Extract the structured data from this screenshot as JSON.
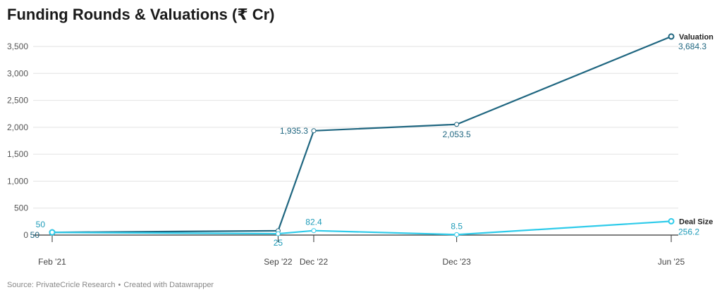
{
  "title": "Funding Rounds & Valuations (₹ Cr)",
  "footer": {
    "source": "Source: PrivateCricle Research",
    "separator": "•",
    "credit": "Created with Datawrapper"
  },
  "colors": {
    "valuation": "#1f6680",
    "deal_size": "#2fcbea",
    "grid": "#e2e2e2",
    "axis": "#333333",
    "tick_text": "#555555"
  },
  "chart_data": {
    "type": "line",
    "title": "Funding Rounds & Valuations (₹ Cr)",
    "xlabel": "",
    "ylabel": "",
    "ylim": [
      0,
      3700
    ],
    "yticks": [
      0,
      500,
      1000,
      1500,
      2000,
      2500,
      3000,
      3500
    ],
    "ytick_labels": [
      "0",
      "500",
      "1,000",
      "1,500",
      "2,000",
      "2,500",
      "3,000",
      "3,500"
    ],
    "grid": true,
    "legend": "inline labels at line ends (right)",
    "categories": [
      "2021-02",
      "2022-09",
      "2022-12",
      "2023-12",
      "2025-06"
    ],
    "category_labels": [
      "Feb '21",
      "Sep '22",
      "Dec '22",
      "Dec '23",
      "Jun '25"
    ],
    "series": [
      {
        "name": "Valuation",
        "values": [
          50,
          80,
          1935.3,
          2053.5,
          3684.3
        ],
        "labels": [
          "50",
          "",
          "1,935.3",
          "2,053.5",
          "3,684.3"
        ],
        "color": "#1f6680"
      },
      {
        "name": "Deal Size",
        "values": [
          50,
          25,
          82.4,
          8.5,
          256.2
        ],
        "labels": [
          "50",
          "25",
          "82.4",
          "8.5",
          "256.2"
        ],
        "color": "#2fcbea"
      }
    ]
  }
}
